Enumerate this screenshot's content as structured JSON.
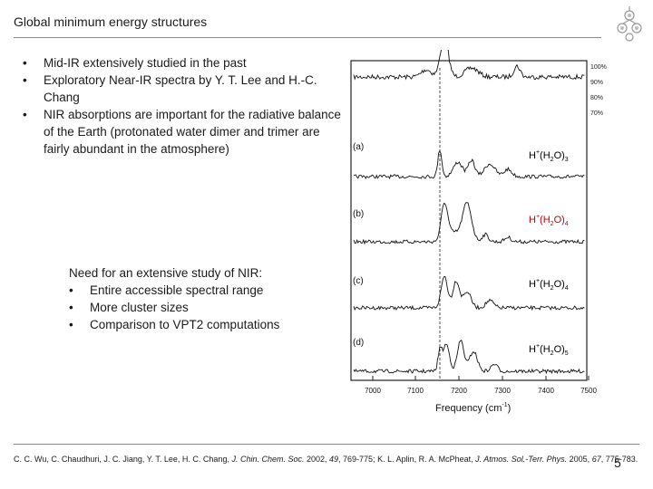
{
  "slide": {
    "title": "Global minimum energy structures",
    "bullets": [
      "Mid-IR extensively studied in the past",
      "Exploratory Near-IR spectra by Y. T. Lee and H.-C. Chang",
      "NIR absorptions are important for the radiative balance of the Earth (protonated water dimer and trimer are fairly abundant in the atmosphere)"
    ],
    "need_heading": "Need for an extensive study of NIR:",
    "need_items": [
      "Entire accessible spectral range",
      "More cluster sizes",
      "Comparison to VPT2 computations"
    ],
    "reference_pre": "C. C. Wu, C. Chaudhuri, J. C. Jiang, Y. T. Lee, H. C. Chang, ",
    "reference_j1": "J. Chin. Chem. Soc.",
    "reference_mid1": " 2002, ",
    "reference_v1": "49",
    "reference_mid2": ", 769-775; K. L. Aplin, R. A. McPheat, ",
    "reference_j2": "J. Atmos. Sol.-Terr. Phys.",
    "reference_mid3": " 2005, ",
    "reference_v2": "67",
    "reference_post": ", 775-783.",
    "page_number": "5"
  },
  "figure": {
    "transmission_ticks": [
      "100%",
      "90%",
      "80%",
      "70%"
    ],
    "panels": [
      {
        "letter": "(a)",
        "label_prefix": "H",
        "label_sup": "+",
        "label_mid": "(H",
        "label_sub": "2",
        "label_o": "O)",
        "label_n": "3",
        "label_color": "#000000"
      },
      {
        "letter": "(b)",
        "label_prefix": "H",
        "label_sup": "+",
        "label_mid": "(H",
        "label_sub": "2",
        "label_o": "O)",
        "label_n": "4",
        "label_color": "#c00000"
      },
      {
        "letter": "(c)",
        "label_prefix": "H",
        "label_sup": "+",
        "label_mid": "(H",
        "label_sub": "2",
        "label_o": "O)",
        "label_n": "4",
        "label_color": "#000000"
      },
      {
        "letter": "(d)",
        "label_prefix": "H",
        "label_sup": "+",
        "label_mid": "(H",
        "label_sub": "2",
        "label_o": "O)",
        "label_n": "5",
        "label_color": "#000000"
      }
    ],
    "x_ticks": [
      "7000",
      "7100",
      "7200",
      "7300",
      "7400",
      "7500"
    ],
    "x_axis_label": "Frequency (cm",
    "x_axis_sup": "-1",
    "x_axis_close": ")"
  }
}
